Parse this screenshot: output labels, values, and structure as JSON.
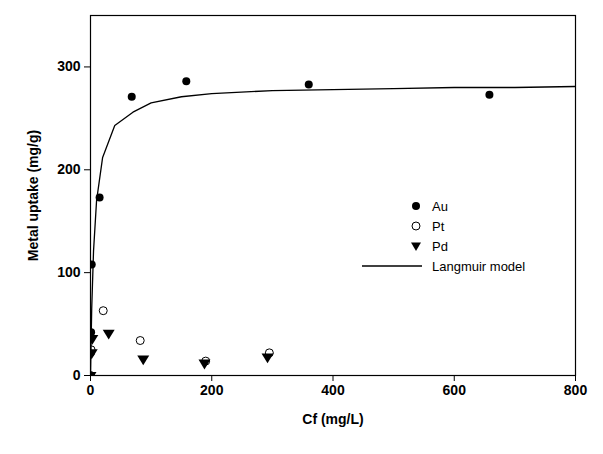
{
  "chart_data": {
    "type": "scatter",
    "xlabel": "Cf (mg/L)",
    "ylabel": "Metal uptake (mg/g)",
    "xlim": [
      0,
      800
    ],
    "ylim": [
      0,
      350
    ],
    "xticks": [
      0,
      200,
      400,
      600,
      800
    ],
    "yticks": [
      0,
      100,
      200,
      300
    ],
    "grid": false,
    "legend": "right",
    "series": [
      {
        "name": "Au",
        "type": "scatter",
        "marker": "circle",
        "color": "#000000",
        "x": [
          0,
          0.5,
          1,
          2,
          15,
          68,
          158,
          360,
          658
        ],
        "values": [
          0,
          22,
          42,
          108,
          173,
          271,
          286,
          283,
          273
        ]
      },
      {
        "name": "Pt",
        "type": "scatter",
        "marker": "circle-open",
        "color": "#000000",
        "x": [
          0,
          1,
          21,
          82,
          190,
          295
        ],
        "values": [
          0,
          25,
          63,
          34,
          14,
          22
        ]
      },
      {
        "name": "Pd",
        "type": "scatter",
        "marker": "triangle-down",
        "color": "#000000",
        "x": [
          0,
          2,
          3,
          30,
          87,
          188,
          292
        ],
        "values": [
          0,
          22,
          36,
          41,
          16,
          12,
          18
        ]
      },
      {
        "name": "Langmuir model",
        "type": "line",
        "line_style": "solid",
        "color": "#000000",
        "x": [
          0,
          2,
          5,
          10,
          20,
          40,
          70,
          100,
          150,
          200,
          300,
          400,
          500,
          600,
          700,
          800
        ],
        "values": [
          0,
          65,
          121,
          170,
          212,
          243,
          256,
          265,
          271,
          274,
          277,
          278,
          279,
          280,
          280,
          281
        ]
      }
    ]
  }
}
